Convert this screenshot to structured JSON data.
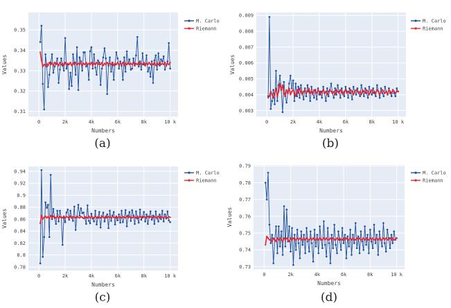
{
  "legend": [
    {
      "name": "M. Carlo",
      "color": "#1f4e9c"
    },
    {
      "name": "Riemann",
      "color": "#e8232e"
    }
  ],
  "chart_data": [
    {
      "type": "line",
      "caption": "(a)",
      "xlabel": "Numbers",
      "ylabel": "Values",
      "xlim": [
        -800,
        10600
      ],
      "ylim": [
        0.3075,
        0.3585
      ],
      "xticks": [
        0,
        2000,
        4000,
        6000,
        8000,
        10000
      ],
      "xtick_labels": [
        "0",
        "2k",
        "4k",
        "6k",
        "8k",
        "10 k"
      ],
      "yticks": [
        0.31,
        0.32,
        0.33,
        0.34,
        0.35
      ],
      "ytick_labels": [
        "0.31",
        "0.32",
        "0.33",
        "0.34",
        "0.35"
      ],
      "grid": true,
      "legend_position": "top-right",
      "series": [
        {
          "name": "M. Carlo",
          "values": [
            0.344,
            0.352,
            0.3235,
            0.311,
            0.338,
            0.332,
            0.322,
            0.328,
            0.334,
            0.338,
            0.329,
            0.332,
            0.3335,
            0.336,
            0.324,
            0.3305,
            0.336,
            0.3325,
            0.33,
            0.346,
            0.331,
            0.333,
            0.321,
            0.329,
            0.3225,
            0.338,
            0.334,
            0.328,
            0.3415,
            0.3205,
            0.3365,
            0.3345,
            0.33,
            0.339,
            0.339,
            0.332,
            0.333,
            0.3255,
            0.3395,
            0.3415,
            0.331,
            0.338,
            0.3315,
            0.328,
            0.335,
            0.334,
            0.323,
            0.331,
            0.3365,
            0.341,
            0.336,
            0.3185,
            0.3325,
            0.3365,
            0.3295,
            0.334,
            0.3255,
            0.333,
            0.339,
            0.336,
            0.331,
            0.3345,
            0.3325,
            0.3255,
            0.3365,
            0.3295,
            0.3395,
            0.3335,
            0.3355,
            0.3305,
            0.331,
            0.336,
            0.3325,
            0.3375,
            0.3465,
            0.332,
            0.3345,
            0.3305,
            0.3385,
            0.333,
            0.3325,
            0.3375,
            0.3295,
            0.3315,
            0.327,
            0.3345,
            0.324,
            0.335,
            0.3375,
            0.3305,
            0.3385,
            0.3325,
            0.3355,
            0.3345,
            0.337,
            0.3305,
            0.3325,
            0.3345,
            0.3435,
            0.331
          ]
        },
        {
          "name": "Riemann",
          "values": [
            0.339,
            0.335,
            0.332,
            0.333,
            0.3325,
            0.3335,
            0.3325,
            0.334,
            0.333,
            0.3335,
            0.3325,
            0.334,
            0.333,
            0.3335,
            0.3325,
            0.334,
            0.333,
            0.3335,
            0.3325,
            0.334,
            0.333,
            0.3335,
            0.333,
            0.334,
            0.3325,
            0.3335,
            0.333,
            0.334,
            0.333,
            0.3335,
            0.333,
            0.334,
            0.3325,
            0.3335,
            0.333,
            0.334,
            0.333,
            0.3335,
            0.333,
            0.334,
            0.3325,
            0.3335,
            0.333,
            0.334,
            0.333,
            0.3335,
            0.333,
            0.334,
            0.3325,
            0.3335,
            0.333,
            0.334,
            0.333,
            0.3335,
            0.333,
            0.334,
            0.3325,
            0.3335,
            0.333,
            0.334,
            0.333,
            0.3335,
            0.333,
            0.334,
            0.3325,
            0.3335,
            0.333,
            0.334,
            0.333,
            0.3335,
            0.333,
            0.334,
            0.3325,
            0.3335,
            0.333,
            0.334,
            0.333,
            0.3335,
            0.333,
            0.334,
            0.3325,
            0.3335,
            0.333,
            0.334,
            0.333,
            0.3335,
            0.333,
            0.334,
            0.3325,
            0.3335,
            0.333,
            0.334,
            0.333,
            0.3335,
            0.333,
            0.334,
            0.3325,
            0.3335,
            0.333,
            0.334
          ]
        }
      ]
    },
    {
      "type": "line",
      "caption": "(b)",
      "xlabel": "Numbers",
      "ylabel": "Values",
      "xlim": [
        -800,
        10600
      ],
      "ylim": [
        0.00262,
        0.00918
      ],
      "xticks": [
        0,
        2000,
        4000,
        6000,
        8000,
        10000
      ],
      "xtick_labels": [
        "0",
        "2k",
        "4k",
        "6k",
        "8k",
        "10 k"
      ],
      "yticks": [
        0.003,
        0.004,
        0.005,
        0.006,
        0.007,
        0.008,
        0.009
      ],
      "ytick_labels": [
        "0.003",
        "0.004",
        "0.005",
        "0.006",
        "0.007",
        "0.008",
        "0.009"
      ],
      "grid": true,
      "legend_position": "top-right",
      "series": [
        {
          "name": "M. Carlo",
          "values": [
            0.0039,
            0.0089,
            0.0031,
            0.0036,
            0.0043,
            0.0034,
            0.0055,
            0.0036,
            0.0046,
            0.0052,
            0.0043,
            0.0029,
            0.0048,
            0.0039,
            0.0035,
            0.0041,
            0.0047,
            0.0052,
            0.0044,
            0.0049,
            0.0036,
            0.0047,
            0.0039,
            0.0045,
            0.0038,
            0.0046,
            0.0041,
            0.0037,
            0.0044,
            0.0039,
            0.0046,
            0.0042,
            0.0036,
            0.0045,
            0.0041,
            0.0038,
            0.0043,
            0.0037,
            0.0044,
            0.004,
            0.0042,
            0.0038,
            0.0045,
            0.0041,
            0.0036,
            0.0044,
            0.0039,
            0.0043,
            0.0047,
            0.0041,
            0.0038,
            0.0044,
            0.004,
            0.0046,
            0.0042,
            0.0038,
            0.0044,
            0.0041,
            0.0039,
            0.0045,
            0.0042,
            0.0038,
            0.0044,
            0.0041,
            0.0037,
            0.0045,
            0.0042,
            0.004,
            0.0044,
            0.0041,
            0.0039,
            0.0046,
            0.0042,
            0.0039,
            0.0044,
            0.0041,
            0.0038,
            0.0045,
            0.0042,
            0.004,
            0.0044,
            0.0041,
            0.0039,
            0.0046,
            0.0042,
            0.0038,
            0.0044,
            0.0041,
            0.0039,
            0.0045,
            0.0042,
            0.004,
            0.0044,
            0.0041,
            0.0039,
            0.0043,
            0.0041,
            0.0039,
            0.0044,
            0.0042
          ]
        },
        {
          "name": "Riemann",
          "values": [
            0.0038,
            0.0039,
            0.0042,
            0.004,
            0.0038,
            0.0041,
            0.0044,
            0.0039,
            0.0042,
            0.0047,
            0.0043,
            0.0046,
            0.0041,
            0.0039,
            0.0043,
            0.0041,
            0.0044,
            0.004,
            0.0042,
            0.0043,
            0.0041,
            0.0039,
            0.0043,
            0.0041,
            0.0044,
            0.0042,
            0.004,
            0.0042,
            0.0043,
            0.0041,
            0.0042,
            0.0044,
            0.0041,
            0.0042,
            0.004,
            0.0043,
            0.0042,
            0.0041,
            0.0043,
            0.0042,
            0.004,
            0.0042,
            0.0043,
            0.0041,
            0.0042,
            0.004,
            0.0042,
            0.0043,
            0.0042,
            0.0041,
            0.0042,
            0.004,
            0.0043,
            0.0042,
            0.0041,
            0.0043,
            0.0042,
            0.004,
            0.0042,
            0.0043,
            0.0041,
            0.0042,
            0.0041,
            0.0043,
            0.0042,
            0.004,
            0.0042,
            0.0043,
            0.0042,
            0.0041,
            0.0042,
            0.004,
            0.0043,
            0.0042,
            0.0041,
            0.0043,
            0.0042,
            0.004,
            0.0042,
            0.0043,
            0.0041,
            0.0042,
            0.0041,
            0.0043,
            0.0042,
            0.004,
            0.0042,
            0.0043,
            0.0042,
            0.0041,
            0.0042,
            0.004,
            0.0043,
            0.0042,
            0.0041,
            0.0043,
            0.0042,
            0.0041,
            0.0042,
            0.0042
          ]
        }
      ]
    },
    {
      "type": "line",
      "caption": "(c)",
      "xlabel": "Numbers",
      "ylabel": "Values",
      "xlim": [
        -800,
        10600
      ],
      "ylim": [
        0.774,
        0.948
      ],
      "xticks": [
        0,
        2000,
        4000,
        6000,
        8000,
        10000
      ],
      "xtick_labels": [
        "0",
        "2k",
        "4k",
        "6k",
        "8k",
        "10 k"
      ],
      "yticks": [
        0.78,
        0.8,
        0.82,
        0.84,
        0.86,
        0.88,
        0.9,
        0.92,
        0.94
      ],
      "ytick_labels": [
        "0.78",
        "0.8",
        "0.82",
        "0.84",
        "0.86",
        "0.88",
        "0.9",
        "0.92",
        "0.94"
      ],
      "grid": true,
      "legend_position": "top-right",
      "series": [
        {
          "name": "M. Carlo",
          "values": [
            0.786,
            0.942,
            0.797,
            0.83,
            0.888,
            0.879,
            0.884,
            0.83,
            0.934,
            0.86,
            0.877,
            0.862,
            0.852,
            0.874,
            0.856,
            0.874,
            0.863,
            0.817,
            0.862,
            0.855,
            0.871,
            0.876,
            0.859,
            0.874,
            0.862,
            0.857,
            0.881,
            0.842,
            0.864,
            0.884,
            0.866,
            0.878,
            0.87,
            0.871,
            0.862,
            0.852,
            0.883,
            0.857,
            0.853,
            0.869,
            0.861,
            0.856,
            0.874,
            0.851,
            0.862,
            0.872,
            0.846,
            0.865,
            0.871,
            0.856,
            0.863,
            0.868,
            0.845,
            0.874,
            0.857,
            0.866,
            0.872,
            0.851,
            0.864,
            0.858,
            0.868,
            0.854,
            0.874,
            0.855,
            0.863,
            0.875,
            0.848,
            0.866,
            0.872,
            0.857,
            0.875,
            0.866,
            0.852,
            0.873,
            0.861,
            0.854,
            0.876,
            0.859,
            0.864,
            0.872,
            0.856,
            0.868,
            0.852,
            0.864,
            0.873,
            0.859,
            0.866,
            0.852,
            0.873,
            0.861,
            0.856,
            0.868,
            0.86,
            0.874,
            0.856,
            0.868,
            0.861,
            0.873,
            0.858,
            0.855
          ]
        },
        {
          "name": "Riemann",
          "values": [
            0.853,
            0.866,
            0.86,
            0.863,
            0.865,
            0.862,
            0.864,
            0.861,
            0.866,
            0.862,
            0.865,
            0.863,
            0.862,
            0.865,
            0.861,
            0.864,
            0.863,
            0.862,
            0.865,
            0.862,
            0.864,
            0.863,
            0.861,
            0.865,
            0.862,
            0.864,
            0.863,
            0.862,
            0.865,
            0.863,
            0.862,
            0.864,
            0.863,
            0.861,
            0.864,
            0.863,
            0.862,
            0.865,
            0.862,
            0.864,
            0.863,
            0.862,
            0.865,
            0.862,
            0.864,
            0.863,
            0.862,
            0.864,
            0.863,
            0.862,
            0.865,
            0.862,
            0.864,
            0.863,
            0.862,
            0.864,
            0.863,
            0.862,
            0.865,
            0.862,
            0.864,
            0.863,
            0.862,
            0.864,
            0.863,
            0.862,
            0.865,
            0.862,
            0.864,
            0.863,
            0.862,
            0.864,
            0.863,
            0.862,
            0.865,
            0.862,
            0.864,
            0.863,
            0.862,
            0.864,
            0.863,
            0.862,
            0.865,
            0.862,
            0.864,
            0.863,
            0.862,
            0.864,
            0.863,
            0.862,
            0.865,
            0.862,
            0.864,
            0.863,
            0.862,
            0.864,
            0.863,
            0.862,
            0.864,
            0.863
          ]
        }
      ]
    },
    {
      "type": "line",
      "caption": "(d)",
      "xlabel": "Numbers",
      "ylabel": "Values",
      "xlim": [
        -800,
        10600
      ],
      "ylim": [
        0.7285,
        0.7905
      ],
      "xticks": [
        0,
        2000,
        4000,
        6000,
        8000,
        10000
      ],
      "xtick_labels": [
        "0",
        "2k",
        "4k",
        "6k",
        "8k",
        "10 k"
      ],
      "yticks": [
        0.73,
        0.74,
        0.75,
        0.76,
        0.77,
        0.78,
        0.79
      ],
      "ytick_labels": [
        "0.73",
        "0.74",
        "0.75",
        "0.76",
        "0.77",
        "0.78",
        "0.79"
      ],
      "grid": true,
      "legend_position": "top-right",
      "series": [
        {
          "name": "M. Carlo",
          "values": [
            0.78,
            0.77,
            0.786,
            0.755,
            0.744,
            0.749,
            0.732,
            0.746,
            0.754,
            0.738,
            0.754,
            0.742,
            0.751,
            0.737,
            0.766,
            0.742,
            0.764,
            0.745,
            0.754,
            0.739,
            0.753,
            0.731,
            0.749,
            0.74,
            0.752,
            0.744,
            0.735,
            0.751,
            0.743,
            0.749,
            0.738,
            0.753,
            0.745,
            0.739,
            0.751,
            0.744,
            0.733,
            0.752,
            0.742,
            0.749,
            0.738,
            0.754,
            0.746,
            0.741,
            0.757,
            0.743,
            0.736,
            0.753,
            0.744,
            0.732,
            0.749,
            0.741,
            0.755,
            0.743,
            0.738,
            0.751,
            0.746,
            0.74,
            0.753,
            0.744,
            0.749,
            0.735,
            0.748,
            0.742,
            0.752,
            0.737,
            0.749,
            0.744,
            0.756,
            0.741,
            0.748,
            0.738,
            0.751,
            0.745,
            0.74,
            0.754,
            0.743,
            0.749,
            0.738,
            0.752,
            0.745,
            0.741,
            0.755,
            0.744,
            0.749,
            0.737,
            0.751,
            0.746,
            0.742,
            0.756,
            0.744,
            0.739,
            0.752,
            0.747,
            0.741,
            0.749,
            0.744,
            0.751,
            0.746,
            0.747
          ]
        },
        {
          "name": "Riemann",
          "values": [
            0.743,
            0.748,
            0.747,
            0.746,
            0.746,
            0.745,
            0.747,
            0.746,
            0.745,
            0.747,
            0.746,
            0.747,
            0.746,
            0.745,
            0.747,
            0.746,
            0.747,
            0.746,
            0.745,
            0.747,
            0.746,
            0.747,
            0.746,
            0.746,
            0.747,
            0.746,
            0.747,
            0.746,
            0.746,
            0.747,
            0.746,
            0.747,
            0.746,
            0.746,
            0.747,
            0.746,
            0.747,
            0.746,
            0.746,
            0.747,
            0.746,
            0.747,
            0.746,
            0.746,
            0.747,
            0.746,
            0.747,
            0.746,
            0.746,
            0.747,
            0.746,
            0.747,
            0.746,
            0.746,
            0.747,
            0.746,
            0.747,
            0.746,
            0.746,
            0.747,
            0.746,
            0.747,
            0.746,
            0.746,
            0.747,
            0.746,
            0.747,
            0.746,
            0.746,
            0.747,
            0.746,
            0.747,
            0.746,
            0.746,
            0.747,
            0.746,
            0.747,
            0.746,
            0.746,
            0.747,
            0.746,
            0.747,
            0.746,
            0.746,
            0.747,
            0.746,
            0.747,
            0.746,
            0.746,
            0.747,
            0.746,
            0.747,
            0.746,
            0.746,
            0.747,
            0.746,
            0.747,
            0.746,
            0.746,
            0.747
          ]
        }
      ]
    }
  ]
}
